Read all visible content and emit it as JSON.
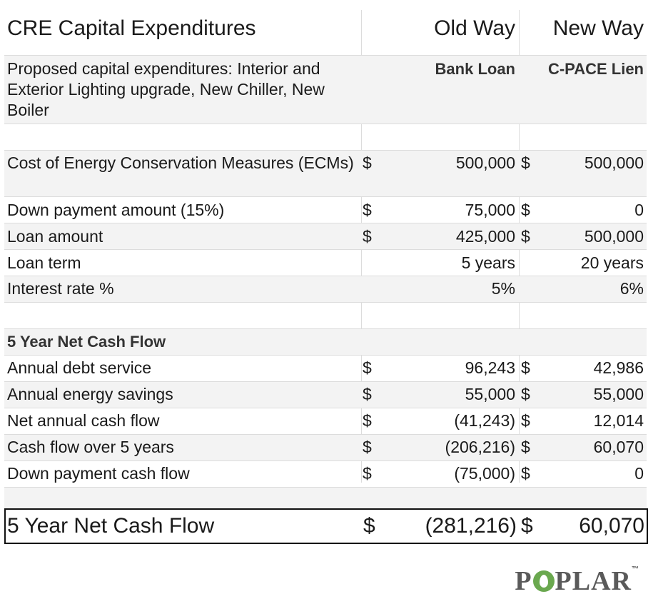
{
  "header": {
    "title": "CRE Capital Expenditures",
    "col1": "Old Way",
    "col2": "New Way"
  },
  "proposal": {
    "label": "Proposed capital expenditures: Interior and Exterior Lighting upgrade, New Chiller, New Boiler",
    "col1": "Bank Loan",
    "col2": "C-PACE Lien"
  },
  "terms": [
    {
      "label": "Cost of Energy Conservation Measures (ECMs)",
      "d1": "$",
      "v1": "500,000",
      "d2": "$",
      "v2": "500,000"
    },
    {
      "label": "Down payment amount (15%)",
      "d1": "$",
      "v1": "75,000",
      "d2": "$",
      "v2": "0"
    },
    {
      "label": "Loan amount",
      "d1": "$",
      "v1": "425,000",
      "d2": "$",
      "v2": "500,000"
    },
    {
      "label": "Loan term",
      "d1": "",
      "v1": "5 years",
      "d2": "",
      "v2": "20 years"
    },
    {
      "label": "Interest rate %",
      "d1": "",
      "v1": "5%",
      "d2": "",
      "v2": "6%"
    }
  ],
  "cashflow_heading": "5 Year Net Cash Flow",
  "cashflow": [
    {
      "label": "Annual debt service",
      "d1": "$",
      "v1": "96,243",
      "d2": "$",
      "v2": "42,986"
    },
    {
      "label": "Annual energy savings",
      "d1": "$",
      "v1": "55,000",
      "d2": "$",
      "v2": "55,000"
    },
    {
      "label": "Net annual cash flow",
      "d1": "$",
      "v1": "(41,243)",
      "d2": "$",
      "v2": "12,014"
    },
    {
      "label": "Cash flow over 5 years",
      "d1": "$",
      "v1": "(206,216)",
      "d2": "$",
      "v2": "60,070"
    },
    {
      "label": "Down payment cash flow",
      "d1": "$",
      "v1": "(75,000)",
      "d2": "$",
      "v2": "0"
    }
  ],
  "total": {
    "label": "5 Year Net Cash Flow",
    "d1": "$",
    "v1": "(281,216)",
    "d2": "$",
    "v2": "60,070"
  },
  "logo": {
    "before": "P",
    "after": "PLAR",
    "tm": "™",
    "leaf_color": "#6aa84f"
  }
}
